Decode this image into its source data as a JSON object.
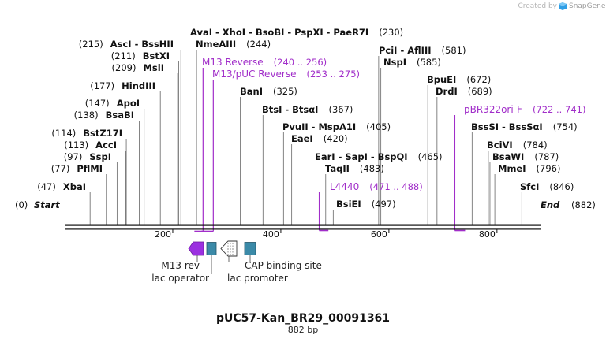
{
  "credit": "Created by",
  "brand": "SnapGene",
  "title": "pUC57-Kan_BR29_00091361",
  "length_label": "882 bp",
  "start_label": "Start",
  "end_label": "End",
  "start_pos": "(0)",
  "end_pos": "(882)",
  "total_bp": 882,
  "axis_ticks": [
    {
      "value": 200,
      "label": "200"
    },
    {
      "value": 400,
      "label": "400"
    },
    {
      "value": 600,
      "label": "600"
    },
    {
      "value": 800,
      "label": "800"
    }
  ],
  "sites": [
    {
      "pos": 47,
      "name": "XbaI",
      "pos_label": "(47)"
    },
    {
      "pos": 77,
      "name": "PflMI",
      "pos_label": "(77)"
    },
    {
      "pos": 97,
      "name": "SspI",
      "pos_label": "(97)"
    },
    {
      "pos": 113,
      "name": "AccI",
      "pos_label": "(113)"
    },
    {
      "pos": 114,
      "name": "BstZ17I",
      "pos_label": "(114)"
    },
    {
      "pos": 138,
      "name": "BsaBI",
      "pos_label": "(138)"
    },
    {
      "pos": 147,
      "name": "ApoI",
      "pos_label": "(147)"
    },
    {
      "pos": 177,
      "name": "HindIII",
      "pos_label": "(177)"
    },
    {
      "pos": 209,
      "name": "MslI",
      "pos_label": "(209)"
    },
    {
      "pos": 211,
      "name": "BstXI",
      "pos_label": "(211)"
    },
    {
      "pos": 215,
      "name": "AscI - BssHII",
      "pos_label": "(215)"
    },
    {
      "pos": 230,
      "name": "AvaI - XhoI - BsoBI - PspXI - PaeR7I",
      "pos_label": "(230)"
    },
    {
      "pos": 244,
      "name": "NmeAIII",
      "pos_label": "(244)"
    },
    {
      "pos": 325,
      "name": "BanI",
      "pos_label": "(325)"
    },
    {
      "pos": 367,
      "name": "BtsI - BtsαI",
      "pos_label": "(367)"
    },
    {
      "pos": 405,
      "name": "PvuII - MspA1I",
      "pos_label": "(405)"
    },
    {
      "pos": 420,
      "name": "EaeI",
      "pos_label": "(420)"
    },
    {
      "pos": 465,
      "name": "EarI - SapI - BspQI",
      "pos_label": "(465)"
    },
    {
      "pos": 483,
      "name": "TaqII",
      "pos_label": "(483)"
    },
    {
      "pos": 497,
      "name": "BsiEI",
      "pos_label": "(497)"
    },
    {
      "pos": 581,
      "name": "PciI - AflIII",
      "pos_label": "(581)"
    },
    {
      "pos": 585,
      "name": "NspI",
      "pos_label": "(585)"
    },
    {
      "pos": 672,
      "name": "BpuEI",
      "pos_label": "(672)"
    },
    {
      "pos": 689,
      "name": "DrdI",
      "pos_label": "(689)"
    },
    {
      "pos": 754,
      "name": "BssSI - BssSαI",
      "pos_label": "(754)"
    },
    {
      "pos": 784,
      "name": "BciVI",
      "pos_label": "(784)"
    },
    {
      "pos": 787,
      "name": "BsaWI",
      "pos_label": "(787)"
    },
    {
      "pos": 796,
      "name": "MmeI",
      "pos_label": "(796)"
    },
    {
      "pos": 846,
      "name": "SfcI",
      "pos_label": "(846)"
    }
  ],
  "primers": [
    {
      "name": "M13 Reverse",
      "range": "(240 .. 256)",
      "start": 240,
      "end": 256,
      "strand": "reverse"
    },
    {
      "name": "M13/pUC Reverse",
      "range": "(253 .. 275)",
      "start": 253,
      "end": 275,
      "strand": "reverse"
    },
    {
      "name": "L4440",
      "range": "(471 .. 488)",
      "start": 471,
      "end": 488,
      "strand": "forward"
    },
    {
      "name": "pBR322ori-F",
      "range": "(722 .. 741)",
      "start": 722,
      "end": 741,
      "strand": "forward"
    }
  ],
  "features": [
    {
      "name": "M13 rev",
      "type": "primer_bind",
      "direction": "reverse",
      "color": "#9b30e0"
    },
    {
      "name": "lac operator",
      "type": "protein_bind",
      "direction": "none",
      "color": "#3b8aa8"
    },
    {
      "name": "lac promoter",
      "type": "promoter",
      "direction": "reverse",
      "color": "#ffffff"
    },
    {
      "name": "CAP binding site",
      "type": "protein_bind",
      "direction": "none",
      "color": "#3b8aa8"
    }
  ],
  "colors": {
    "primer": "#a12ec9",
    "feature_box": "#3b8aa8",
    "m13_arrow": "#9b30e0",
    "backbone": "#111111",
    "snapgene_icon": "#2f9fe6"
  }
}
